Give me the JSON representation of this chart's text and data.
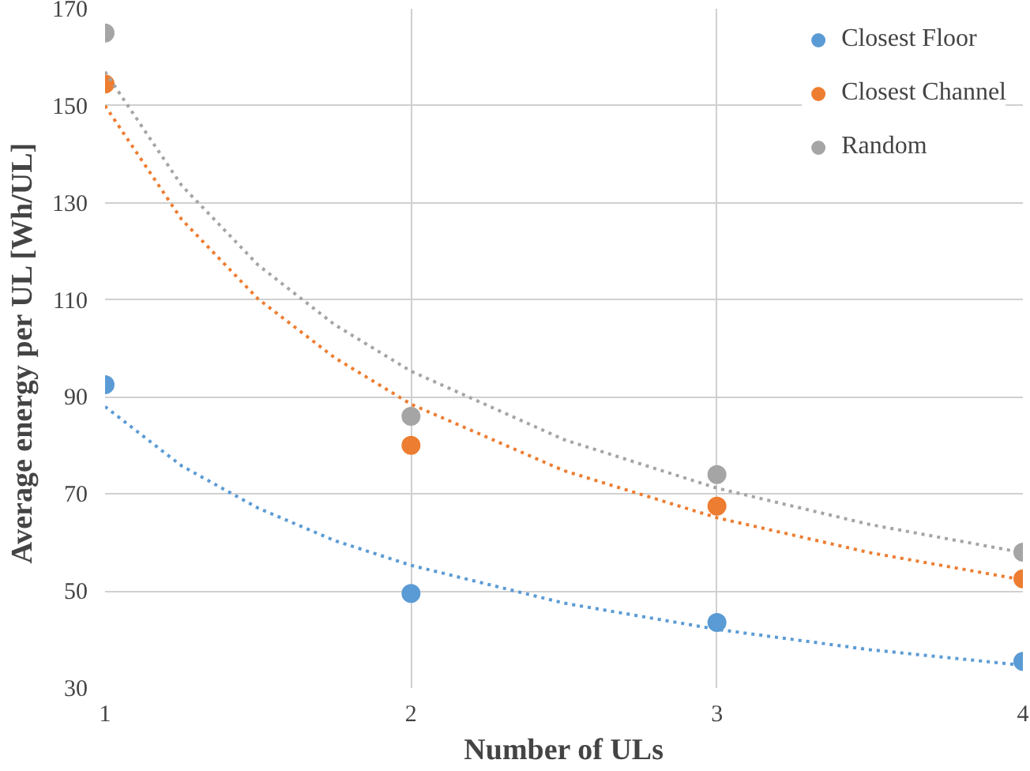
{
  "chart_data": {
    "type": "scatter",
    "xlabel": "Number of ULs",
    "ylabel": "Average  energy per UL [Wh/UL]",
    "x": [
      1,
      2,
      3,
      4
    ],
    "xlim": [
      1,
      4
    ],
    "xticks": [
      1,
      2,
      3,
      4
    ],
    "ylim": [
      30,
      170
    ],
    "yticks": [
      30,
      50,
      70,
      90,
      110,
      130,
      150,
      170
    ],
    "grid": true,
    "legend": "top right",
    "marker": "circle",
    "series": [
      {
        "name": "Closest Floor",
        "color": "#5b9bd5",
        "values": [
          92.5,
          49.5,
          43.5,
          35.5
        ]
      },
      {
        "name": "Closest Channel",
        "color": "#ed7d31",
        "values": [
          154.5,
          80,
          67.5,
          52.5
        ]
      },
      {
        "name": "Random",
        "color": "#a5a5a5",
        "values": [
          165,
          86,
          74,
          58
        ]
      },
      {
        "type": "line",
        "line_style": "dotted",
        "marker": "none",
        "color": "#5b9bd5",
        "x": [
          1,
          1.25,
          1.5,
          1.75,
          2,
          2.5,
          3,
          3.5,
          4
        ],
        "values": [
          88,
          75.8,
          67.1,
          60.4,
          55.3,
          47.5,
          42.1,
          37.9,
          34.7
        ]
      },
      {
        "type": "line",
        "line_style": "dotted",
        "marker": "none",
        "color": "#ed7d31",
        "x": [
          1,
          1.25,
          1.5,
          1.75,
          2,
          2.5,
          3,
          3.5,
          4
        ],
        "values": [
          150,
          126.6,
          110.2,
          98.1,
          88.5,
          74.8,
          65.1,
          57.9,
          52.3
        ]
      },
      {
        "type": "line",
        "line_style": "dotted",
        "marker": "none",
        "color": "#a5a5a5",
        "x": [
          1,
          1.25,
          1.5,
          1.75,
          2,
          2.5,
          3,
          3.5,
          4
        ],
        "values": [
          157,
          133.6,
          117.2,
          104.9,
          95.3,
          81.2,
          71.2,
          63.7,
          57.9
        ]
      }
    ]
  }
}
